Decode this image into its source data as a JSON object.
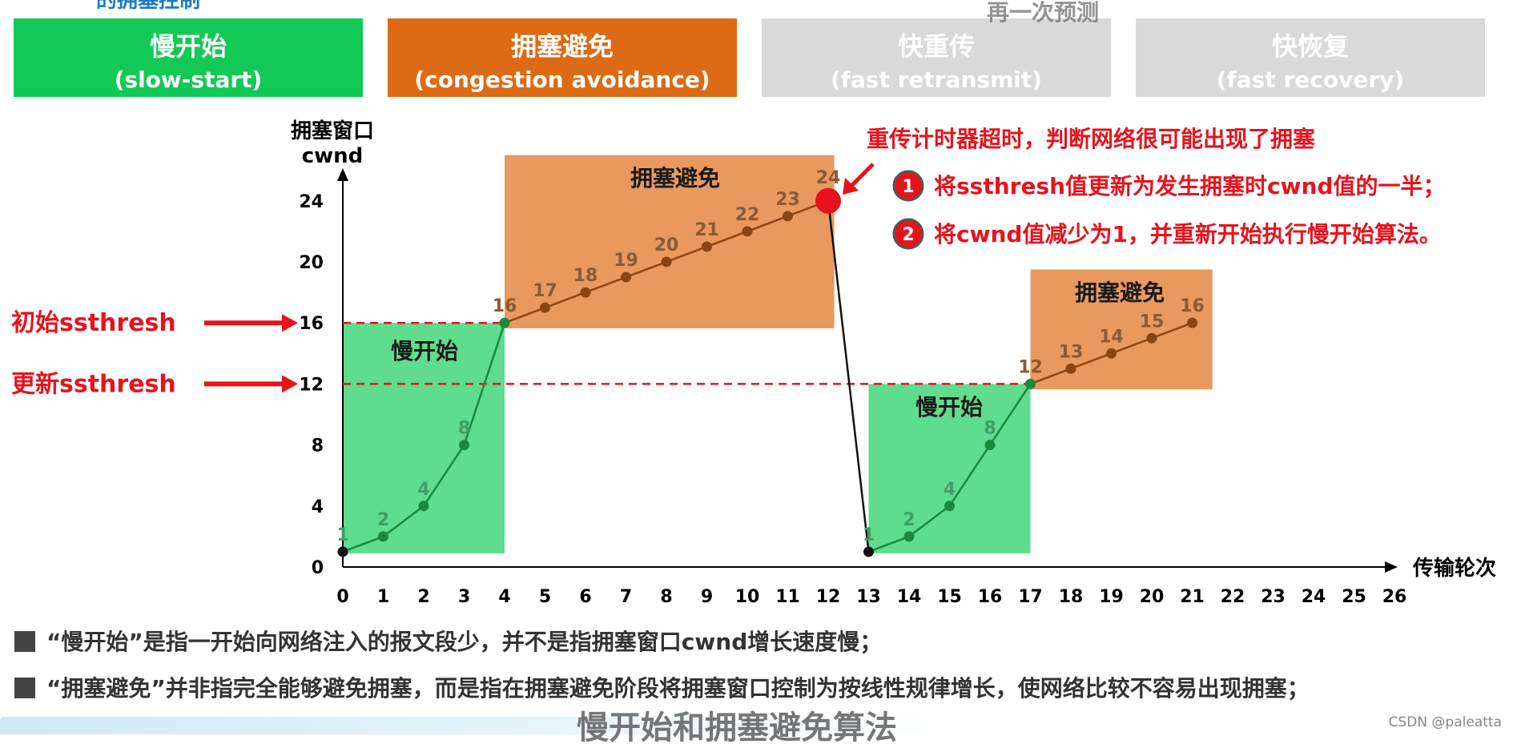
{
  "header_fragment": "再一次预测",
  "title_fragment": "的拥塞控制",
  "phases": [
    {
      "zh": "慢开始",
      "en": "(slow-start)",
      "color": "#12c956"
    },
    {
      "zh": "拥塞避免",
      "en": "(congestion avoidance)",
      "color": "#dd6a14"
    },
    {
      "zh": "快重传",
      "en": "(fast retransmit)",
      "color": "#d9d9d9"
    },
    {
      "zh": "快恢复",
      "en": "(fast recovery)",
      "color": "#d9d9d9"
    }
  ],
  "notes": [
    "“慢开始”是指一开始向网络注入的报文段少，并不是指拥塞窗口cwnd增长速度慢；",
    "“拥塞避免”并非指完全能够避免拥塞，而是指在拥塞避免阶段将拥塞窗口控制为按线性规律增长，使网络比较不容易出现拥塞；"
  ],
  "subtitle": "慢开始和拥塞避免算法",
  "watermark": "CSDN @paleatta",
  "chart_data": {
    "type": "line",
    "ylabel_line1": "拥塞窗口",
    "ylabel_line2": "cwnd",
    "xlabel": "传输轮次",
    "xlim": [
      0,
      26
    ],
    "ylim": [
      0,
      24
    ],
    "x_ticks": [
      "0",
      "1",
      "2",
      "3",
      "4",
      "5",
      "6",
      "7",
      "8",
      "9",
      "10",
      "11",
      "12",
      "13",
      "14",
      "15",
      "16",
      "17",
      "18",
      "19",
      "20",
      "21",
      "22",
      "23",
      "24",
      "25",
      "26"
    ],
    "y_ticks": [
      "0",
      "4",
      "8",
      "12",
      "16",
      "20",
      "24"
    ],
    "series": [
      {
        "x": [
          0,
          1,
          2,
          3,
          4,
          5,
          6,
          7,
          8,
          9,
          10,
          11,
          12,
          13,
          14,
          15,
          16,
          17,
          18,
          19,
          20,
          21
        ],
        "y": [
          1,
          2,
          4,
          8,
          16,
          17,
          18,
          19,
          20,
          21,
          22,
          23,
          24,
          1,
          2,
          4,
          8,
          12,
          13,
          14,
          15,
          16
        ]
      }
    ],
    "point_labels": [
      "1",
      "2",
      "4",
      "8",
      "16",
      "17",
      "18",
      "19",
      "20",
      "21",
      "22",
      "23",
      "24",
      "1",
      "2",
      "4",
      "8",
      "12",
      "13",
      "14",
      "15",
      "16"
    ],
    "regions": [
      {
        "label": "慢开始",
        "x0": 0,
        "x1": 4,
        "y0": 1,
        "y1": 16,
        "color": "#5fdc8e"
      },
      {
        "label": "拥塞避免",
        "x0": 4,
        "x1": 12.15,
        "y0": 15.75,
        "y1": 27,
        "color": "#e8995f"
      },
      {
        "label": "慢开始",
        "x0": 13,
        "x1": 17,
        "y0": 1,
        "y1": 12,
        "color": "#5fdc8e"
      },
      {
        "label": "拥塞避免",
        "x0": 17,
        "x1": 21.5,
        "y0": 11.75,
        "y1": 19.5,
        "color": "#e8995f"
      }
    ],
    "thresholds": [
      {
        "y": 16,
        "label": "初始ssthresh"
      },
      {
        "y": 12,
        "label": "更新ssthresh"
      }
    ],
    "timeout_text": "重传计时器超时，判断网络很可能出现了拥塞",
    "steps": [
      {
        "num": "1",
        "text": "将ssthresh值更新为发生拥塞时cwnd值的一半；"
      },
      {
        "num": "2",
        "text": "将cwnd值减少为1，并重新开始执行慢开始算法。"
      }
    ],
    "colors": {
      "accent": "#e8121c",
      "line_green": "#1a8a3a",
      "line_brown": "#8b4513",
      "label": "#8a5a34"
    }
  }
}
